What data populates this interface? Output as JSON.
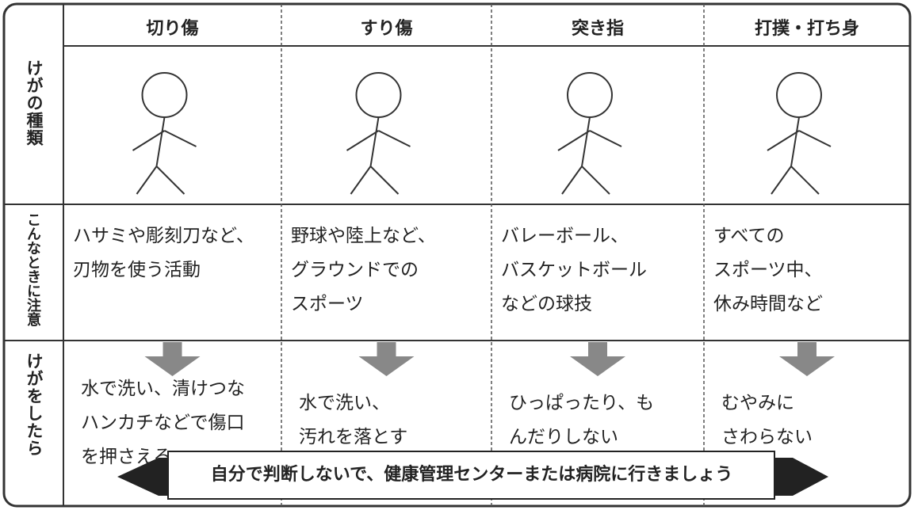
{
  "row_labels": [
    "けがの種類",
    "こんなときに注意",
    "けがをしたら"
  ],
  "columns": [
    {
      "header": "切り傷",
      "caution": [
        "ハサミや彫刻刀など、",
        "刃物を使う活動"
      ],
      "action": [
        "水で洗い、清けつな",
        "ハンカチなどで傷口",
        "を押さえる"
      ]
    },
    {
      "header": "すり傷",
      "caution": [
        "野球や陸上など、",
        "グラウンドでの",
        "スポーツ"
      ],
      "action": [
        "水で洗い、",
        "汚れを落とす"
      ]
    },
    {
      "header": "突き指",
      "caution": [
        "バレーボール、",
        "バスケットボール",
        "などの球技"
      ],
      "action": [
        "ひっぱったり、も",
        "んだりしない"
      ]
    },
    {
      "header": "打撲・打ち身",
      "caution": [
        "すべての",
        "スポーツ中、",
        "休み時間など"
      ],
      "action": [
        "むやみに",
        "さわらない"
      ]
    }
  ],
  "banner": "自分で判断しないで、健康管理センターまたは病院に行きましょう"
}
